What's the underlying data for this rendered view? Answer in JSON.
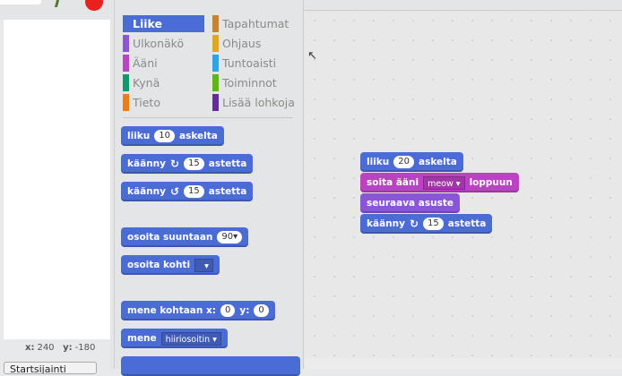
{
  "stage": {
    "x_label": "x:",
    "x_value": "240",
    "y_label": "y:",
    "y_value": "-180",
    "start_button": "Startsijainti"
  },
  "categories": [
    {
      "label": "Liike",
      "color": "#4a6cd4",
      "selected": true
    },
    {
      "label": "Ulkonäkö",
      "color": "#8a55d7"
    },
    {
      "label": "Ääni",
      "color": "#bb42c3"
    },
    {
      "label": "Kynä",
      "color": "#0e9a6c"
    },
    {
      "label": "Tieto",
      "color": "#ee7d16"
    },
    {
      "label": "Tapahtumat",
      "color": "#c88330"
    },
    {
      "label": "Ohjaus",
      "color": "#e1a91a"
    },
    {
      "label": "Tuntoaisti",
      "color": "#2ca5e2"
    },
    {
      "label": "Toiminnot",
      "color": "#5cb712"
    },
    {
      "label": "Lisää lohkoja",
      "color": "#632d99"
    }
  ],
  "palette": {
    "move": {
      "a": "liiku",
      "v": "10",
      "b": "askelta"
    },
    "turn_right": {
      "a": "käänny",
      "v": "15",
      "b": "astetta"
    },
    "turn_left": {
      "a": "käänny",
      "v": "15",
      "b": "astetta"
    },
    "point_dir": {
      "a": "osoita suuntaan",
      "v": "90"
    },
    "point_towards": {
      "a": "osoita kohti",
      "v": ""
    },
    "goto_xy": {
      "a": "mene kohtaan x:",
      "x": "0",
      "b": "y:",
      "y": "0"
    },
    "goto": {
      "a": "mene",
      "v": "hiiriosoitin"
    }
  },
  "script": {
    "move": {
      "a": "liiku",
      "v": "20",
      "b": "askelta"
    },
    "sound": {
      "a": "soita ääni",
      "v": "meow",
      "b": "loppuun"
    },
    "costume": {
      "a": "seuraava asuste"
    },
    "turn": {
      "a": "käänny",
      "v": "15",
      "b": "astetta"
    }
  },
  "colors": {
    "motion": "#4a6cd4",
    "sound": "#bb42c3",
    "looks": "#8a55d7"
  }
}
